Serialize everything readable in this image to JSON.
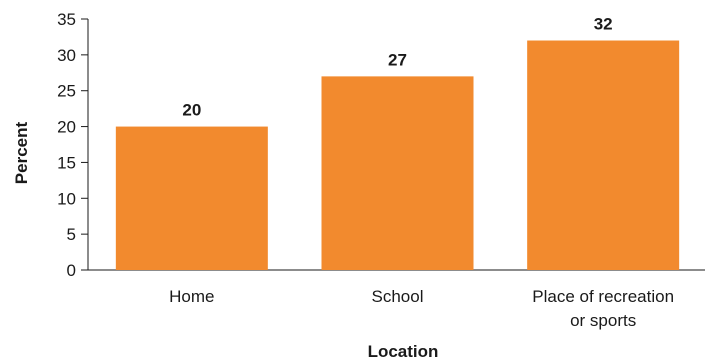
{
  "chart_data": {
    "type": "bar",
    "categories": [
      [
        "Home"
      ],
      [
        "School"
      ],
      [
        "Place of recreation",
        "or sports"
      ]
    ],
    "values": [
      20,
      27,
      32
    ],
    "value_labels": [
      "20",
      "27",
      "32"
    ],
    "xlabel": "Location",
    "ylabel": "Percent",
    "ylim": [
      0,
      35
    ],
    "yticks": [
      "0",
      "5",
      "10",
      "15",
      "20",
      "25",
      "30",
      "35"
    ],
    "grid": false,
    "legend": "none",
    "bar_color": "#f28a2e"
  }
}
